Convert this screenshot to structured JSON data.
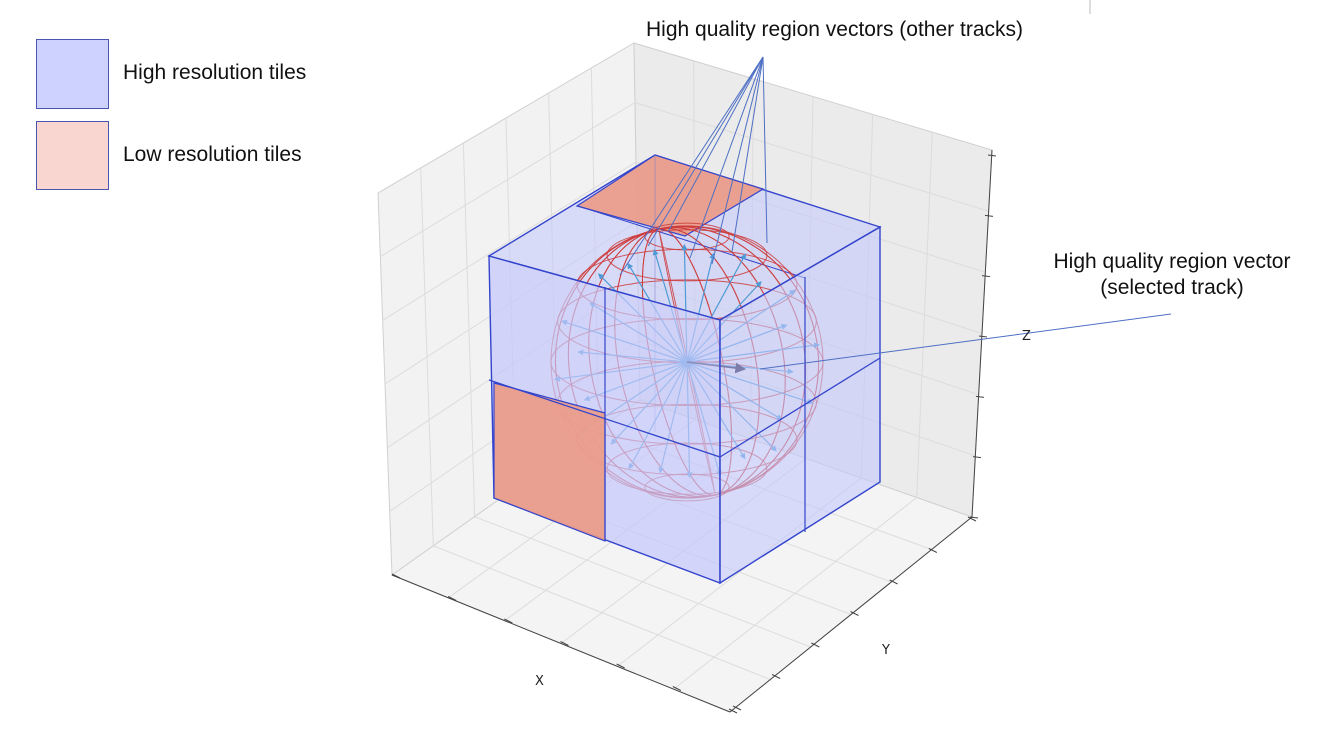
{
  "legend": {
    "high": {
      "label": "High resolution tiles",
      "fill": "#cdd2ff",
      "stroke": "#4a55b0"
    },
    "low": {
      "label": "Low resolution tiles",
      "fill": "#f9d6d0",
      "stroke": "#4a55b0"
    }
  },
  "callouts": {
    "other_tracks": "High quality region vectors (other tracks)",
    "selected_line1": "High quality region vector",
    "selected_line2": "(selected track)"
  },
  "axes": {
    "x": "X",
    "y": "Y",
    "z": "Z"
  },
  "colors": {
    "tile_high": "#c3c8fb",
    "tile_low": "#ec9a85",
    "tile_edge": "#3344cc",
    "sphere_wire": "#cc3b3b",
    "vector": "#4f9ad6",
    "selected_vector": "#111133",
    "pane": "#f2f2f2",
    "grid": "#dcdcdc",
    "callout_line": "#4d6fc4"
  }
}
